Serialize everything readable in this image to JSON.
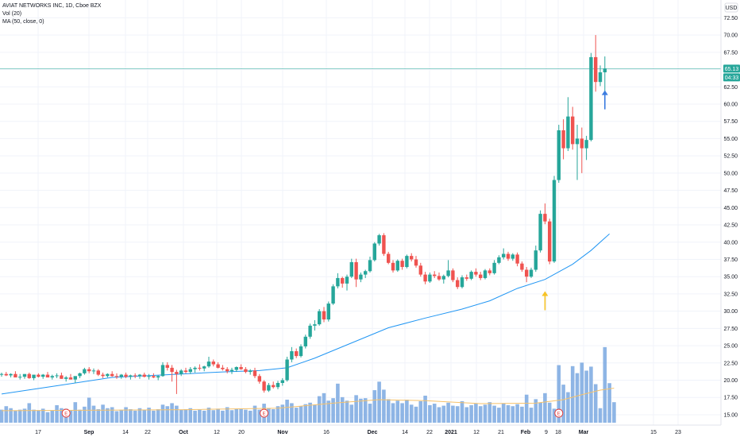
{
  "header": {
    "title": "AVIAT NETWORKS INC, 1D, Cboe BZX",
    "vol_legend": "Vol (20)",
    "ma_legend": "MA (50, close, 0)",
    "currency": "USD"
  },
  "price_badges": {
    "last": "65.13",
    "countdown": "04:33"
  },
  "colors": {
    "up": "#26a69a",
    "down": "#ef5350",
    "ma": "#2196f3",
    "volume": "#7aa8e0",
    "vol_ma": "#f6c26b",
    "last_line": "#26a69a",
    "arrow_up_yellow": "#f7c325",
    "arrow_up_blue": "#3d7de0",
    "earnings": "#e53935"
  },
  "chart_data": {
    "type": "candlestick",
    "symbol": "AVIAT NETWORKS INC",
    "interval": "1D",
    "exchange": "Cboe BZX",
    "ylim": [
      13.5,
      74.5
    ],
    "y_ticks": [
      "72.50",
      "70.00",
      "67.50",
      "65.00",
      "62.50",
      "60.00",
      "57.50",
      "55.00",
      "52.50",
      "50.00",
      "47.50",
      "45.00",
      "42.50",
      "40.00",
      "37.50",
      "35.00",
      "32.50",
      "30.00",
      "27.50",
      "25.00",
      "22.50",
      "20.00",
      "17.50",
      "15.00"
    ],
    "x_ticks": [
      "17",
      "Sep",
      "14",
      "22",
      "Oct",
      "12",
      "20",
      "Nov",
      "16",
      "Dec",
      "14",
      "22",
      "2021",
      "12",
      "21",
      "Feb",
      "9",
      "18",
      "Mar",
      "15",
      "23"
    ],
    "x_ticks_bold": [
      "Sep",
      "Oct",
      "Nov",
      "Dec",
      "2021",
      "Feb",
      "Mar"
    ],
    "candles": [
      [
        20.8,
        21.1,
        20.5,
        20.9
      ],
      [
        20.9,
        21.2,
        20.6,
        20.7
      ],
      [
        20.7,
        21.0,
        20.4,
        20.9
      ],
      [
        20.9,
        21.3,
        20.6,
        20.4
      ],
      [
        20.4,
        20.9,
        20.1,
        20.5
      ],
      [
        20.5,
        20.8,
        20.2,
        20.9
      ],
      [
        20.9,
        21.1,
        20.2,
        20.3
      ],
      [
        20.3,
        20.7,
        20.0,
        20.8
      ],
      [
        20.8,
        21.0,
        20.4,
        20.5
      ],
      [
        20.5,
        20.9,
        20.2,
        20.8
      ],
      [
        20.8,
        21.2,
        20.6,
        20.4
      ],
      [
        20.4,
        20.8,
        20.1,
        20.6
      ],
      [
        20.6,
        21.0,
        20.3,
        20.7
      ],
      [
        20.7,
        21.1,
        20.2,
        20.2
      ],
      [
        20.2,
        20.6,
        19.8,
        20.4
      ],
      [
        20.4,
        20.9,
        20.1,
        20.1
      ],
      [
        20.1,
        20.5,
        19.6,
        20.6
      ],
      [
        20.6,
        21.1,
        20.3,
        21.0
      ],
      [
        21.0,
        21.8,
        20.8,
        21.6
      ],
      [
        21.6,
        21.9,
        21.0,
        21.3
      ],
      [
        21.3,
        21.7,
        20.9,
        21.4
      ],
      [
        21.4,
        21.6,
        20.6,
        20.8
      ],
      [
        20.8,
        21.1,
        20.3,
        20.6
      ],
      [
        20.6,
        21.0,
        20.4,
        20.9
      ],
      [
        20.9,
        21.3,
        20.5,
        20.6
      ],
      [
        20.6,
        21.0,
        20.2,
        20.5
      ],
      [
        20.5,
        20.9,
        20.2,
        20.8
      ],
      [
        20.8,
        21.1,
        20.3,
        20.5
      ],
      [
        20.5,
        20.8,
        20.1,
        20.7
      ],
      [
        20.7,
        21.0,
        20.3,
        20.6
      ],
      [
        20.6,
        20.9,
        20.2,
        20.8
      ],
      [
        20.8,
        21.1,
        20.4,
        20.5
      ],
      [
        20.5,
        20.9,
        20.1,
        20.6
      ],
      [
        20.6,
        21.0,
        20.3,
        20.4
      ],
      [
        20.4,
        20.7,
        20.0,
        20.6
      ],
      [
        20.6,
        22.6,
        20.5,
        22.2
      ],
      [
        22.2,
        22.6,
        21.4,
        21.8
      ],
      [
        21.8,
        22.2,
        19.8,
        21.2
      ],
      [
        21.2,
        21.5,
        18.0,
        20.9
      ],
      [
        20.9,
        21.6,
        20.6,
        21.4
      ],
      [
        21.4,
        21.8,
        21.0,
        21.2
      ],
      [
        21.2,
        21.9,
        20.9,
        21.6
      ],
      [
        21.6,
        22.0,
        21.1,
        21.8
      ],
      [
        21.8,
        22.3,
        21.4,
        21.7
      ],
      [
        21.7,
        22.1,
        21.3,
        22.0
      ],
      [
        22.0,
        23.4,
        21.8,
        22.7
      ],
      [
        22.7,
        23.0,
        22.0,
        22.3
      ],
      [
        22.3,
        22.6,
        21.7,
        21.8
      ],
      [
        21.8,
        22.2,
        21.4,
        21.6
      ],
      [
        21.6,
        21.9,
        21.0,
        21.3
      ],
      [
        21.3,
        21.8,
        20.9,
        21.5
      ],
      [
        21.5,
        22.0,
        21.2,
        21.9
      ],
      [
        21.9,
        22.3,
        21.5,
        21.6
      ],
      [
        21.6,
        21.9,
        21.0,
        21.2
      ],
      [
        21.2,
        21.6,
        20.8,
        21.4
      ],
      [
        21.4,
        21.8,
        20.3,
        20.6
      ],
      [
        20.6,
        20.9,
        19.5,
        19.8
      ],
      [
        19.8,
        20.0,
        18.2,
        18.5
      ],
      [
        18.5,
        19.6,
        18.3,
        19.3
      ],
      [
        19.3,
        19.8,
        18.8,
        19.0
      ],
      [
        19.0,
        19.9,
        18.7,
        19.6
      ],
      [
        19.6,
        20.3,
        19.2,
        20.0
      ],
      [
        20.0,
        23.4,
        19.8,
        23.0
      ],
      [
        23.0,
        24.8,
        22.6,
        24.2
      ],
      [
        24.2,
        24.6,
        23.2,
        23.5
      ],
      [
        23.5,
        25.2,
        23.3,
        24.9
      ],
      [
        24.9,
        26.6,
        24.6,
        26.3
      ],
      [
        26.3,
        28.2,
        26.0,
        27.9
      ],
      [
        27.9,
        28.7,
        27.2,
        28.1
      ],
      [
        28.1,
        30.3,
        27.9,
        30.0
      ],
      [
        30.0,
        30.6,
        28.4,
        28.8
      ],
      [
        28.8,
        31.4,
        28.5,
        31.1
      ],
      [
        31.1,
        33.9,
        30.9,
        33.6
      ],
      [
        33.6,
        35.5,
        33.3,
        34.8
      ],
      [
        34.8,
        35.0,
        33.4,
        34.0
      ],
      [
        34.0,
        35.3,
        33.0,
        35.0
      ],
      [
        35.0,
        37.6,
        34.8,
        37.1
      ],
      [
        37.1,
        37.6,
        33.5,
        34.6
      ],
      [
        34.6,
        35.6,
        34.2,
        35.3
      ],
      [
        35.3,
        36.0,
        34.8,
        35.8
      ],
      [
        35.8,
        37.9,
        35.6,
        37.4
      ],
      [
        37.4,
        40.0,
        37.2,
        39.8
      ],
      [
        39.8,
        41.2,
        39.5,
        41.0
      ],
      [
        41.0,
        41.3,
        38.0,
        38.3
      ],
      [
        38.3,
        38.6,
        36.8,
        37.0
      ],
      [
        37.0,
        37.4,
        35.6,
        35.9
      ],
      [
        35.9,
        37.5,
        35.7,
        37.3
      ],
      [
        37.3,
        37.6,
        36.0,
        36.4
      ],
      [
        36.4,
        38.2,
        36.2,
        38.0
      ],
      [
        38.0,
        38.4,
        37.2,
        37.5
      ],
      [
        37.5,
        38.0,
        36.3,
        36.6
      ],
      [
        36.6,
        37.0,
        35.0,
        35.3
      ],
      [
        35.3,
        35.7,
        33.9,
        34.3
      ],
      [
        34.3,
        35.6,
        34.1,
        35.3
      ],
      [
        35.3,
        35.8,
        34.8,
        35.1
      ],
      [
        35.1,
        35.6,
        34.4,
        34.6
      ],
      [
        34.6,
        35.3,
        34.0,
        35.1
      ],
      [
        35.1,
        37.4,
        34.9,
        35.9
      ],
      [
        35.9,
        36.2,
        34.2,
        34.5
      ],
      [
        34.5,
        34.9,
        33.2,
        33.5
      ],
      [
        33.5,
        35.2,
        33.3,
        34.9
      ],
      [
        34.9,
        35.3,
        34.4,
        34.7
      ],
      [
        34.7,
        35.9,
        34.5,
        35.7
      ],
      [
        35.7,
        36.2,
        35.0,
        35.3
      ],
      [
        35.3,
        35.7,
        34.5,
        34.8
      ],
      [
        34.8,
        36.1,
        34.6,
        35.9
      ],
      [
        35.9,
        36.2,
        35.2,
        35.5
      ],
      [
        35.5,
        37.4,
        35.3,
        37.0
      ],
      [
        37.0,
        38.1,
        36.8,
        37.8
      ],
      [
        37.8,
        39.1,
        37.5,
        38.3
      ],
      [
        38.3,
        38.6,
        37.3,
        37.6
      ],
      [
        37.6,
        38.4,
        37.3,
        38.2
      ],
      [
        38.2,
        38.5,
        36.5,
        36.9
      ],
      [
        36.9,
        37.2,
        35.7,
        36.0
      ],
      [
        36.0,
        36.4,
        34.2,
        35.0
      ],
      [
        35.0,
        36.3,
        34.8,
        36.0
      ],
      [
        36.0,
        39.5,
        35.7,
        38.8
      ],
      [
        38.8,
        44.6,
        38.5,
        44.1
      ],
      [
        44.1,
        45.6,
        42.6,
        43.0
      ],
      [
        43.0,
        43.4,
        36.8,
        37.2
      ],
      [
        37.2,
        49.6,
        37.0,
        49.0
      ],
      [
        49.0,
        57.0,
        48.6,
        56.2
      ],
      [
        56.2,
        57.8,
        52.0,
        53.6
      ],
      [
        53.6,
        61.0,
        53.2,
        58.2
      ],
      [
        58.2,
        59.6,
        53.4,
        54.2
      ],
      [
        54.2,
        57.0,
        49.0,
        55.0
      ],
      [
        55.0,
        56.6,
        50.0,
        53.6
      ],
      [
        53.6,
        55.4,
        51.9,
        54.8
      ],
      [
        54.8,
        67.4,
        54.6,
        66.8
      ],
      [
        66.8,
        70.0,
        61.8,
        63.2
      ],
      [
        63.2,
        65.6,
        62.6,
        64.6
      ],
      [
        64.6,
        66.9,
        61.6,
        65.13
      ]
    ],
    "ma50": [
      [
        0,
        18.0
      ],
      [
        12,
        19.2
      ],
      [
        24,
        20.4
      ],
      [
        36,
        20.8
      ],
      [
        48,
        21.2
      ],
      [
        56,
        21.4
      ],
      [
        62,
        21.8
      ],
      [
        68,
        23.2
      ],
      [
        76,
        25.4
      ],
      [
        84,
        27.6
      ],
      [
        92,
        29.0
      ],
      [
        100,
        30.3
      ],
      [
        106,
        31.5
      ],
      [
        112,
        33.3
      ],
      [
        118,
        34.6
      ],
      [
        124,
        36.8
      ],
      [
        128,
        38.8
      ],
      [
        132,
        41.2
      ]
    ],
    "volume": [
      [
        2.6,
        "e"
      ],
      [
        3.3,
        "e"
      ],
      [
        2.9,
        "e"
      ],
      [
        2.4,
        "e"
      ],
      [
        2.6,
        "e"
      ],
      [
        2.8,
        "e"
      ],
      [
        3.9,
        "e"
      ],
      [
        2.6,
        "e"
      ],
      [
        2.5,
        "e"
      ],
      [
        2.8,
        "e"
      ],
      [
        2.1,
        "e"
      ],
      [
        2.4,
        "e"
      ],
      [
        3.5,
        "e"
      ],
      [
        2.9,
        "e"
      ],
      [
        2.8,
        "e"
      ],
      [
        2.5,
        "e"
      ],
      [
        4.1,
        "e"
      ],
      [
        2.6,
        "e"
      ],
      [
        3.2,
        "e"
      ],
      [
        5.0,
        "e"
      ],
      [
        3.4,
        "e"
      ],
      [
        2.7,
        "e"
      ],
      [
        3.6,
        "e"
      ],
      [
        2.9,
        "e"
      ],
      [
        3.1,
        "e"
      ],
      [
        2.3,
        "e"
      ],
      [
        2.6,
        "e"
      ],
      [
        3.1,
        "e"
      ],
      [
        2.7,
        "e"
      ],
      [
        2.4,
        "e"
      ],
      [
        2.9,
        "e"
      ],
      [
        2.6,
        "e"
      ],
      [
        3.0,
        "e"
      ],
      [
        2.4,
        "e"
      ],
      [
        2.7,
        "e"
      ],
      [
        3.6,
        "e"
      ],
      [
        3.3,
        "e"
      ],
      [
        3.9,
        "e"
      ],
      [
        3.4,
        "e"
      ],
      [
        2.6,
        "e"
      ],
      [
        2.7,
        "e"
      ],
      [
        2.9,
        "e"
      ],
      [
        2.4,
        "e"
      ],
      [
        2.6,
        "e"
      ],
      [
        2.4,
        "e"
      ],
      [
        3.0,
        "e"
      ],
      [
        2.5,
        "e"
      ],
      [
        2.8,
        "e"
      ],
      [
        2.4,
        "e"
      ],
      [
        3.1,
        "e"
      ],
      [
        2.5,
        "e"
      ],
      [
        2.7,
        "e"
      ],
      [
        2.8,
        "e"
      ],
      [
        2.6,
        "e"
      ],
      [
        2.4,
        "e"
      ],
      [
        3.4,
        "e"
      ],
      [
        2.6,
        "e"
      ],
      [
        3.8,
        "e"
      ],
      [
        2.9,
        "e"
      ],
      [
        2.7,
        "e"
      ],
      [
        3.3,
        "e"
      ],
      [
        3.6,
        "e"
      ],
      [
        4.6,
        "e"
      ],
      [
        3.9,
        "e"
      ],
      [
        3.0,
        "e"
      ],
      [
        3.3,
        "e"
      ],
      [
        3.7,
        "e"
      ],
      [
        4.0,
        "e"
      ],
      [
        3.6,
        "e"
      ],
      [
        5.3,
        "e"
      ],
      [
        5.9,
        "e"
      ],
      [
        4.4,
        "e"
      ],
      [
        4.9,
        "e"
      ],
      [
        7.8,
        "e"
      ],
      [
        5.1,
        "e"
      ],
      [
        4.4,
        "e"
      ],
      [
        3.6,
        "e"
      ],
      [
        5.5,
        "e"
      ],
      [
        4.8,
        "e"
      ],
      [
        4.9,
        "e"
      ],
      [
        3.8,
        "e"
      ],
      [
        6.5,
        "e"
      ],
      [
        8.2,
        "e"
      ],
      [
        6.6,
        "e"
      ],
      [
        4.7,
        "e"
      ],
      [
        3.9,
        "e"
      ],
      [
        4.4,
        "e"
      ],
      [
        3.9,
        "e"
      ],
      [
        4.6,
        "e"
      ],
      [
        3.6,
        "e"
      ],
      [
        3.2,
        "e"
      ],
      [
        4.3,
        "e"
      ],
      [
        5.4,
        "e"
      ],
      [
        3.5,
        "e"
      ],
      [
        3.8,
        "e"
      ],
      [
        3.1,
        "e"
      ],
      [
        3.4,
        "e"
      ],
      [
        4.0,
        "e"
      ],
      [
        3.4,
        "e"
      ],
      [
        3.3,
        "e"
      ],
      [
        4.3,
        "e"
      ],
      [
        3.1,
        "e"
      ],
      [
        3.5,
        "e"
      ],
      [
        3.8,
        "e"
      ],
      [
        3.3,
        "e"
      ],
      [
        3.6,
        "e"
      ],
      [
        4.1,
        "e"
      ],
      [
        3.4,
        "e"
      ],
      [
        3.0,
        "e"
      ],
      [
        3.9,
        "e"
      ],
      [
        3.5,
        "e"
      ],
      [
        3.3,
        "e"
      ],
      [
        3.7,
        "e"
      ],
      [
        3.2,
        "e"
      ],
      [
        5.6,
        "e"
      ],
      [
        3.0,
        "e"
      ],
      [
        4.7,
        "e"
      ],
      [
        4.0,
        "e"
      ],
      [
        5.9,
        "e"
      ],
      [
        4.0,
        "e"
      ],
      [
        2.8,
        "e"
      ],
      [
        11.5,
        "e"
      ],
      [
        7.6,
        "e"
      ],
      [
        6.1,
        "e"
      ],
      [
        11.3,
        "e"
      ],
      [
        9.9,
        "e"
      ],
      [
        12.0,
        "e"
      ],
      [
        10.4,
        "e"
      ],
      [
        11.2,
        "e"
      ],
      [
        7.7,
        "e"
      ],
      [
        2.9,
        "e"
      ],
      [
        15.1,
        "e"
      ],
      [
        7.9,
        "e"
      ],
      [
        4.1,
        "e"
      ]
    ],
    "vol_ma": [
      [
        0,
        2.4
      ],
      [
        40,
        2.6
      ],
      [
        60,
        2.9
      ],
      [
        72,
        3.9
      ],
      [
        82,
        4.6
      ],
      [
        92,
        4.4
      ],
      [
        104,
        3.8
      ],
      [
        116,
        3.9
      ],
      [
        122,
        4.6
      ],
      [
        126,
        5.6
      ],
      [
        130,
        6.5
      ],
      [
        133,
        6.9
      ]
    ],
    "earnings_markers": [
      14,
      57,
      121
    ],
    "arrows": [
      {
        "index": 118,
        "price": 31.5,
        "color": "yellow"
      },
      {
        "index": 131,
        "price": 60.6,
        "color": "blue"
      }
    ],
    "last_price": 65.13,
    "secondary_label": 64.33
  }
}
